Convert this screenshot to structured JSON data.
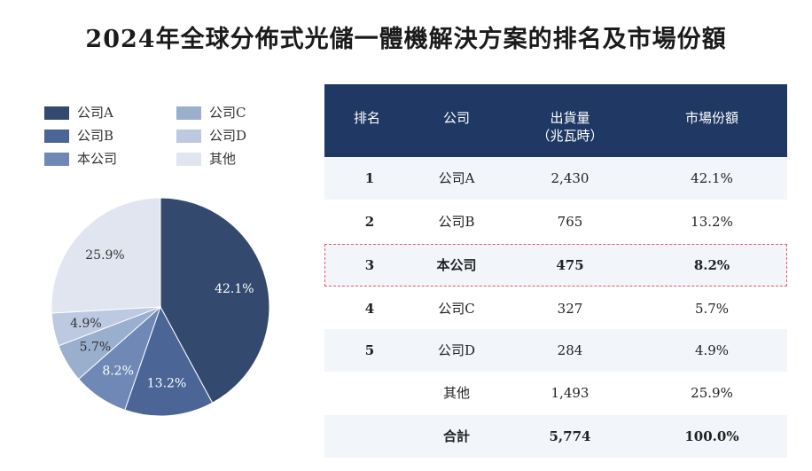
{
  "title": "2024年全球分佈式光儲一體機解決方案的排名及市場份額",
  "colors": {
    "header_bg": "#1f3864",
    "slices": [
      "#334a6e",
      "#4a6596",
      "#6f88b5",
      "#9aaece",
      "#bcc9e0",
      "#e0e5f0"
    ],
    "highlight_border": "#e05a6a"
  },
  "chart_data": {
    "type": "pie",
    "start": "12 o'clock, clockwise",
    "legend_placement": "top-left",
    "slices": [
      {
        "name": "公司A",
        "value": 42.1,
        "label": "42.1%"
      },
      {
        "name": "公司B",
        "value": 13.2,
        "label": "13.2%"
      },
      {
        "name": "本公司",
        "value": 8.2,
        "label": "8.2%"
      },
      {
        "name": "公司C",
        "value": 5.7,
        "label": "5.7%"
      },
      {
        "name": "公司D",
        "value": 4.9,
        "label": "4.9%"
      },
      {
        "name": "其他",
        "value": 25.9,
        "label": "25.9%"
      }
    ]
  },
  "table": {
    "headers": {
      "rank": "排名",
      "company": "公司",
      "shipment": "出貨量",
      "shipment_unit": "（兆瓦時）",
      "share": "市場份額"
    },
    "rows": [
      {
        "rank": "1",
        "company": "公司A",
        "shipment": "2,430",
        "share": "42.1%"
      },
      {
        "rank": "2",
        "company": "公司B",
        "shipment": "765",
        "share": "13.2%"
      },
      {
        "rank": "3",
        "company": "本公司",
        "shipment": "475",
        "share": "8.2%"
      },
      {
        "rank": "4",
        "company": "公司C",
        "shipment": "327",
        "share": "5.7%"
      },
      {
        "rank": "5",
        "company": "公司D",
        "shipment": "284",
        "share": "4.9%"
      },
      {
        "rank": "",
        "company": "其他",
        "shipment": "1,493",
        "share": "25.9%"
      },
      {
        "rank": "",
        "company": "合計",
        "shipment": "5,774",
        "share": "100.0%"
      }
    ]
  }
}
